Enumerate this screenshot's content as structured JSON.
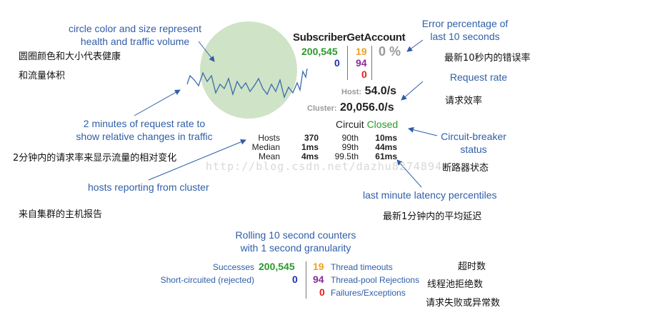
{
  "annotations": {
    "circle": "circle color and size represent\nhealth and traffic volume",
    "circle_cn_1": "圆圈颜色和大小代表健康",
    "circle_cn_2": "和流量体积",
    "error_pct": "Error percentage of\nlast 10 seconds",
    "error_pct_cn": "最新10秒内的错误率",
    "request_rate": "Request rate",
    "request_rate_cn": "请求效率",
    "rate_2min": "2 minutes of request rate to\nshow relative changes in traffic",
    "rate_2min_cn": "2分钟内的请求率来显示流量的相对变化",
    "breaker": "Circuit-breaker\nstatus",
    "breaker_cn": "断路器状态",
    "hosts": "hosts reporting from cluster",
    "hosts_cn": "来自集群的主机报告",
    "latency": "last minute latency percentiles",
    "latency_cn": "最新1分钟内的平均延迟",
    "rolling": "Rolling 10 second counters\nwith 1 second granularity",
    "timeouts_cn": "超时数",
    "rejections_cn": "线程池拒绝数",
    "failures_cn": "请求失败或异常数"
  },
  "widget": {
    "name": "SubscriberGetAccount",
    "successes": "200,545",
    "short_circuited": "0",
    "timeouts": "19",
    "rejections": "94",
    "failures": "0",
    "error_percent": "0 %",
    "host_label": "Host:",
    "host_rate": "54.0/s",
    "cluster_label": "Cluster:",
    "cluster_rate": "20,056.0/s",
    "circuit_label": "Circuit",
    "circuit_status": "Closed",
    "hosts_label": "Hosts",
    "hosts_value": "370",
    "median_label": "Median",
    "median_value": "1ms",
    "mean_label": "Mean",
    "mean_value": "4ms",
    "p90_label": "90th",
    "p90_value": "10ms",
    "p99_label": "99th",
    "p99_value": "44ms",
    "p995_label": "99.5th",
    "p995_value": "61ms"
  },
  "legend": {
    "successes_label": "Successes",
    "successes_value": "200,545",
    "short_label": "Short-circuited (rejected)",
    "short_value": "0",
    "timeouts_value": "19",
    "timeouts_label": "Thread timeouts",
    "rejections_value": "94",
    "rejections_label": "Thread-pool Rejections",
    "failures_value": "0",
    "failures_label": "Failures/Exceptions"
  },
  "watermark": "http://blog.csdn.net/dazhu8274894",
  "colors": {
    "annotation_blue": "#2f5ea8",
    "circle_green": "#cfe3c6",
    "success_green": "#2a9a2a",
    "timeout_orange": "#f0a020",
    "shortcircuit_navy": "#1f2fb0",
    "rejection_purple": "#8b2a9a",
    "failure_red": "#e0201a"
  }
}
